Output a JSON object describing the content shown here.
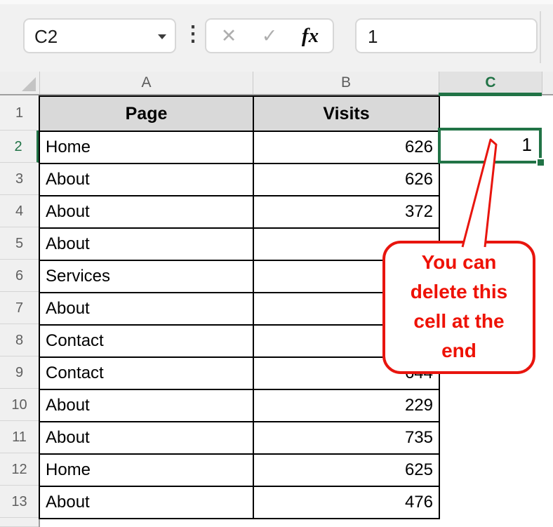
{
  "colors": {
    "selection_green": "#217346",
    "callout_red": "#e8150e",
    "header_fill": "#d9d9d9"
  },
  "formula_bar": {
    "name_box": "C2",
    "cancel_label": "✕",
    "enter_label": "✓",
    "fx_label": "fx",
    "value": "1"
  },
  "sheet": {
    "column_headers": {
      "a": "A",
      "b": "B",
      "c": "C",
      "d": ""
    },
    "rows": [
      {
        "n": "1",
        "a": "Page",
        "b": "Visits"
      },
      {
        "n": "2",
        "a": "Home",
        "b": "626"
      },
      {
        "n": "3",
        "a": "About",
        "b": "626"
      },
      {
        "n": "4",
        "a": "About",
        "b": "372"
      },
      {
        "n": "5",
        "a": "About",
        "b": ""
      },
      {
        "n": "6",
        "a": "Services",
        "b": ""
      },
      {
        "n": "7",
        "a": "About",
        "b": ""
      },
      {
        "n": "8",
        "a": "Contact",
        "b": ""
      },
      {
        "n": "9",
        "a": "Contact",
        "b": "644"
      },
      {
        "n": "10",
        "a": "About",
        "b": "229"
      },
      {
        "n": "11",
        "a": "About",
        "b": "735"
      },
      {
        "n": "12",
        "a": "Home",
        "b": "625"
      },
      {
        "n": "13",
        "a": "About",
        "b": "476"
      }
    ],
    "selection": {
      "ref": "C2",
      "value": "1"
    }
  },
  "callout": {
    "lines": [
      "You can",
      "delete this",
      "cell at the",
      "end"
    ]
  }
}
